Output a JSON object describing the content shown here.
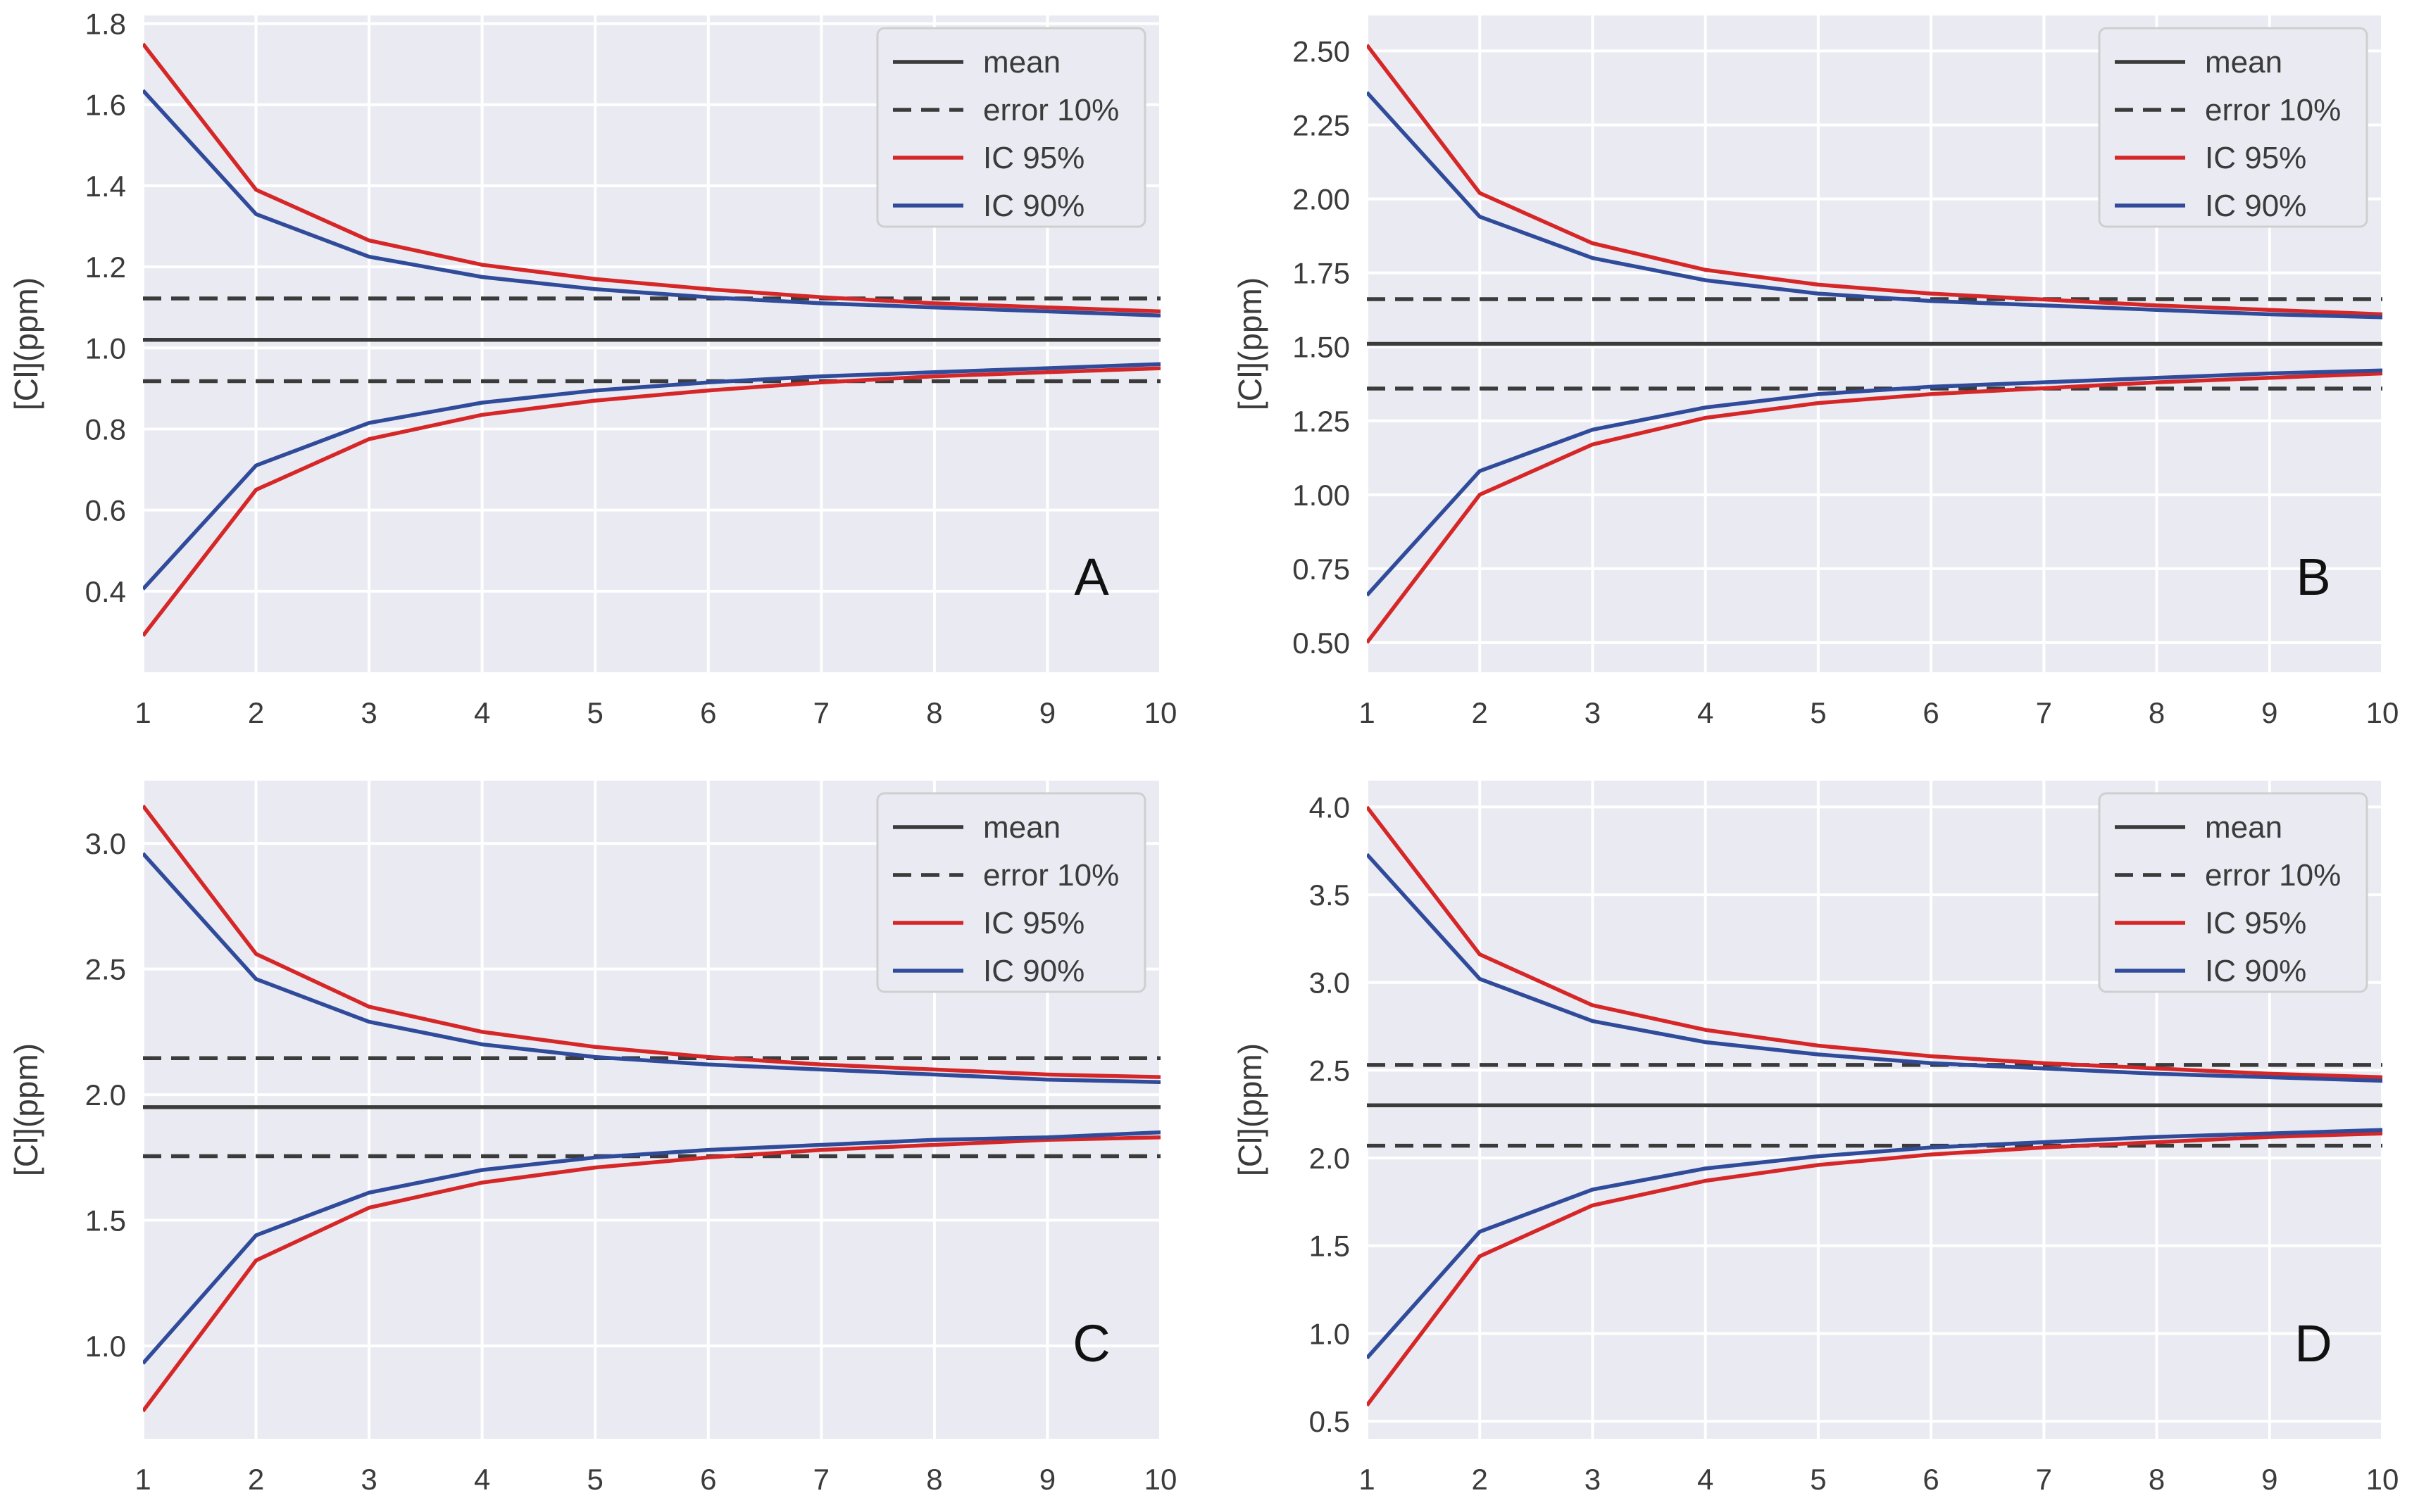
{
  "colors": {
    "background": "#eaeaf2",
    "grid": "#ffffff",
    "text": "#3b3b3b",
    "mean": "#3b3b3b",
    "error": "#3b3b3b",
    "ic95": "#d62728",
    "ic90": "#2f4b9a",
    "legend_border": "#cfcfcf",
    "legend_bg": "#eaeaf2"
  },
  "chart_data": [
    {
      "type": "line",
      "panel_label": "A",
      "ylabel": "[Cl](ppm)",
      "xlabel": "",
      "x": [
        1,
        2,
        3,
        4,
        5,
        6,
        7,
        8,
        9,
        10
      ],
      "xlim": [
        1,
        10
      ],
      "ylim": [
        0.2,
        1.82
      ],
      "yticks": [
        0.4,
        0.6,
        0.8,
        1.0,
        1.2,
        1.4,
        1.6,
        1.8
      ],
      "ytick_labels": [
        "0.4",
        "0.6",
        "0.8",
        "1.0",
        "1.2",
        "1.4",
        "1.6",
        "1.8"
      ],
      "grid": true,
      "legend_position": "top-right",
      "series": [
        {
          "name": "mean",
          "style": "solid",
          "color_key": "mean",
          "values": [
            1.02,
            1.02,
            1.02,
            1.02,
            1.02,
            1.02,
            1.02,
            1.02,
            1.02,
            1.02
          ]
        },
        {
          "name": "error 10%",
          "style": "dashed",
          "color_key": "error",
          "values": [
            1.122,
            1.122,
            1.122,
            1.122,
            1.122,
            1.122,
            1.122,
            1.122,
            1.122,
            1.122
          ]
        },
        {
          "name": "error 10% lower",
          "legend": false,
          "style": "dashed",
          "color_key": "error",
          "values": [
            0.918,
            0.918,
            0.918,
            0.918,
            0.918,
            0.918,
            0.918,
            0.918,
            0.918,
            0.918
          ]
        },
        {
          "name": "IC 95%",
          "style": "solid",
          "color_key": "ic95",
          "values": [
            1.75,
            1.39,
            1.265,
            1.205,
            1.17,
            1.145,
            1.125,
            1.11,
            1.1,
            1.09
          ]
        },
        {
          "name": "IC 95% lower",
          "legend": false,
          "style": "solid",
          "color_key": "ic95",
          "values": [
            0.29,
            0.65,
            0.775,
            0.835,
            0.87,
            0.895,
            0.915,
            0.93,
            0.94,
            0.95
          ]
        },
        {
          "name": "IC 90%",
          "style": "solid",
          "color_key": "ic90",
          "values": [
            1.635,
            1.33,
            1.225,
            1.175,
            1.145,
            1.125,
            1.11,
            1.1,
            1.09,
            1.08
          ]
        },
        {
          "name": "IC 90% lower",
          "legend": false,
          "style": "solid",
          "color_key": "ic90",
          "values": [
            0.405,
            0.71,
            0.815,
            0.865,
            0.895,
            0.915,
            0.93,
            0.94,
            0.95,
            0.96
          ]
        }
      ]
    },
    {
      "type": "line",
      "panel_label": "B",
      "ylabel": "[Cl](ppm)",
      "xlabel": "",
      "x": [
        1,
        2,
        3,
        4,
        5,
        6,
        7,
        8,
        9,
        10
      ],
      "xlim": [
        1,
        10
      ],
      "ylim": [
        0.4,
        2.62
      ],
      "yticks": [
        0.5,
        0.75,
        1.0,
        1.25,
        1.5,
        1.75,
        2.0,
        2.25,
        2.5
      ],
      "ytick_labels": [
        "0.50",
        "0.75",
        "1.00",
        "1.25",
        "1.50",
        "1.75",
        "2.00",
        "2.25",
        "2.50"
      ],
      "grid": true,
      "legend_position": "top-right",
      "series": [
        {
          "name": "mean",
          "style": "solid",
          "color_key": "mean",
          "values": [
            1.51,
            1.51,
            1.51,
            1.51,
            1.51,
            1.51,
            1.51,
            1.51,
            1.51,
            1.51
          ]
        },
        {
          "name": "error 10%",
          "style": "dashed",
          "color_key": "error",
          "values": [
            1.661,
            1.661,
            1.661,
            1.661,
            1.661,
            1.661,
            1.661,
            1.661,
            1.661,
            1.661
          ]
        },
        {
          "name": "error 10% lower",
          "legend": false,
          "style": "dashed",
          "color_key": "error",
          "values": [
            1.359,
            1.359,
            1.359,
            1.359,
            1.359,
            1.359,
            1.359,
            1.359,
            1.359,
            1.359
          ]
        },
        {
          "name": "IC 95%",
          "style": "solid",
          "color_key": "ic95",
          "values": [
            2.52,
            2.02,
            1.85,
            1.76,
            1.71,
            1.68,
            1.66,
            1.64,
            1.625,
            1.61
          ]
        },
        {
          "name": "IC 95% lower",
          "legend": false,
          "style": "solid",
          "color_key": "ic95",
          "values": [
            0.5,
            1.0,
            1.17,
            1.26,
            1.31,
            1.34,
            1.36,
            1.38,
            1.395,
            1.41
          ]
        },
        {
          "name": "IC 90%",
          "style": "solid",
          "color_key": "ic90",
          "values": [
            2.36,
            1.94,
            1.8,
            1.725,
            1.68,
            1.655,
            1.64,
            1.625,
            1.61,
            1.6
          ]
        },
        {
          "name": "IC 90% lower",
          "legend": false,
          "style": "solid",
          "color_key": "ic90",
          "values": [
            0.66,
            1.08,
            1.22,
            1.295,
            1.34,
            1.365,
            1.38,
            1.395,
            1.41,
            1.42
          ]
        }
      ]
    },
    {
      "type": "line",
      "panel_label": "C",
      "ylabel": "[Cl](ppm)",
      "xlabel": "",
      "x": [
        1,
        2,
        3,
        4,
        5,
        6,
        7,
        8,
        9,
        10
      ],
      "xlim": [
        1,
        10
      ],
      "ylim": [
        0.63,
        3.25
      ],
      "yticks": [
        1.0,
        1.5,
        2.0,
        2.5,
        3.0
      ],
      "ytick_labels": [
        "1.0",
        "1.5",
        "2.0",
        "2.5",
        "3.0"
      ],
      "grid": true,
      "legend_position": "top-right",
      "series": [
        {
          "name": "mean",
          "style": "solid",
          "color_key": "mean",
          "values": [
            1.95,
            1.95,
            1.95,
            1.95,
            1.95,
            1.95,
            1.95,
            1.95,
            1.95,
            1.95
          ]
        },
        {
          "name": "error 10%",
          "style": "dashed",
          "color_key": "error",
          "values": [
            2.145,
            2.145,
            2.145,
            2.145,
            2.145,
            2.145,
            2.145,
            2.145,
            2.145,
            2.145
          ]
        },
        {
          "name": "error 10% lower",
          "legend": false,
          "style": "dashed",
          "color_key": "error",
          "values": [
            1.755,
            1.755,
            1.755,
            1.755,
            1.755,
            1.755,
            1.755,
            1.755,
            1.755,
            1.755
          ]
        },
        {
          "name": "IC 95%",
          "style": "solid",
          "color_key": "ic95",
          "values": [
            3.15,
            2.56,
            2.35,
            2.25,
            2.19,
            2.15,
            2.12,
            2.1,
            2.08,
            2.07
          ]
        },
        {
          "name": "IC 95% lower",
          "legend": false,
          "style": "solid",
          "color_key": "ic95",
          "values": [
            0.74,
            1.34,
            1.55,
            1.65,
            1.71,
            1.75,
            1.78,
            1.8,
            1.82,
            1.83
          ]
        },
        {
          "name": "IC 90%",
          "style": "solid",
          "color_key": "ic90",
          "values": [
            2.96,
            2.46,
            2.29,
            2.2,
            2.15,
            2.12,
            2.1,
            2.08,
            2.06,
            2.05
          ]
        },
        {
          "name": "IC 90% lower",
          "legend": false,
          "style": "solid",
          "color_key": "ic90",
          "values": [
            0.93,
            1.44,
            1.61,
            1.7,
            1.75,
            1.78,
            1.8,
            1.82,
            1.83,
            1.85
          ]
        }
      ]
    },
    {
      "type": "line",
      "panel_label": "D",
      "ylabel": "[Cl](ppm)",
      "xlabel": "",
      "x": [
        1,
        2,
        3,
        4,
        5,
        6,
        7,
        8,
        9,
        10
      ],
      "xlim": [
        1,
        10
      ],
      "ylim": [
        0.4,
        4.15
      ],
      "yticks": [
        0.5,
        1.0,
        1.5,
        2.0,
        2.5,
        3.0,
        3.5,
        4.0
      ],
      "ytick_labels": [
        "0.5",
        "1.0",
        "1.5",
        "2.0",
        "2.5",
        "3.0",
        "3.5",
        "4.0"
      ],
      "grid": true,
      "legend_position": "top-right",
      "series": [
        {
          "name": "mean",
          "style": "solid",
          "color_key": "mean",
          "values": [
            2.3,
            2.3,
            2.3,
            2.3,
            2.3,
            2.3,
            2.3,
            2.3,
            2.3,
            2.3
          ]
        },
        {
          "name": "error 10%",
          "style": "dashed",
          "color_key": "error",
          "values": [
            2.53,
            2.53,
            2.53,
            2.53,
            2.53,
            2.53,
            2.53,
            2.53,
            2.53,
            2.53
          ]
        },
        {
          "name": "error 10% lower",
          "legend": false,
          "style": "dashed",
          "color_key": "error",
          "values": [
            2.07,
            2.07,
            2.07,
            2.07,
            2.07,
            2.07,
            2.07,
            2.07,
            2.07,
            2.07
          ]
        },
        {
          "name": "IC 95%",
          "style": "solid",
          "color_key": "ic95",
          "values": [
            4.0,
            3.16,
            2.87,
            2.73,
            2.64,
            2.58,
            2.54,
            2.51,
            2.48,
            2.46
          ]
        },
        {
          "name": "IC 95% lower",
          "legend": false,
          "style": "solid",
          "color_key": "ic95",
          "values": [
            0.59,
            1.44,
            1.73,
            1.87,
            1.96,
            2.02,
            2.06,
            2.09,
            2.12,
            2.14
          ]
        },
        {
          "name": "IC 90%",
          "style": "solid",
          "color_key": "ic90",
          "values": [
            3.73,
            3.02,
            2.78,
            2.66,
            2.59,
            2.54,
            2.51,
            2.48,
            2.46,
            2.44
          ]
        },
        {
          "name": "IC 90% lower",
          "legend": false,
          "style": "solid",
          "color_key": "ic90",
          "values": [
            0.86,
            1.58,
            1.82,
            1.94,
            2.01,
            2.06,
            2.09,
            2.12,
            2.14,
            2.16
          ]
        }
      ]
    }
  ]
}
